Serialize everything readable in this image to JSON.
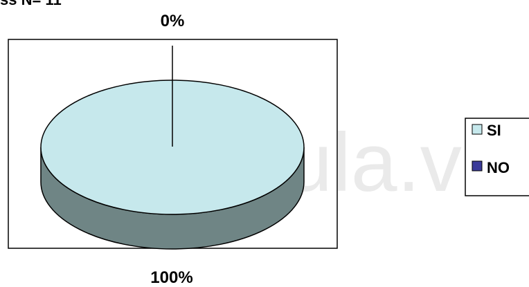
{
  "header_fragment": "ss N= 11",
  "watermark": "digital.ula.ve",
  "colors": {
    "si_top": "#c6e8ec",
    "si_side": "#6f8585",
    "no": "#3b3b9a",
    "outline": "#000000"
  },
  "chart_data": {
    "type": "pie",
    "categories": [
      "SI",
      "NO"
    ],
    "values": [
      100,
      0
    ],
    "data_labels": [
      "100%",
      "0%"
    ],
    "legend_placement": "right",
    "three_d": true
  }
}
